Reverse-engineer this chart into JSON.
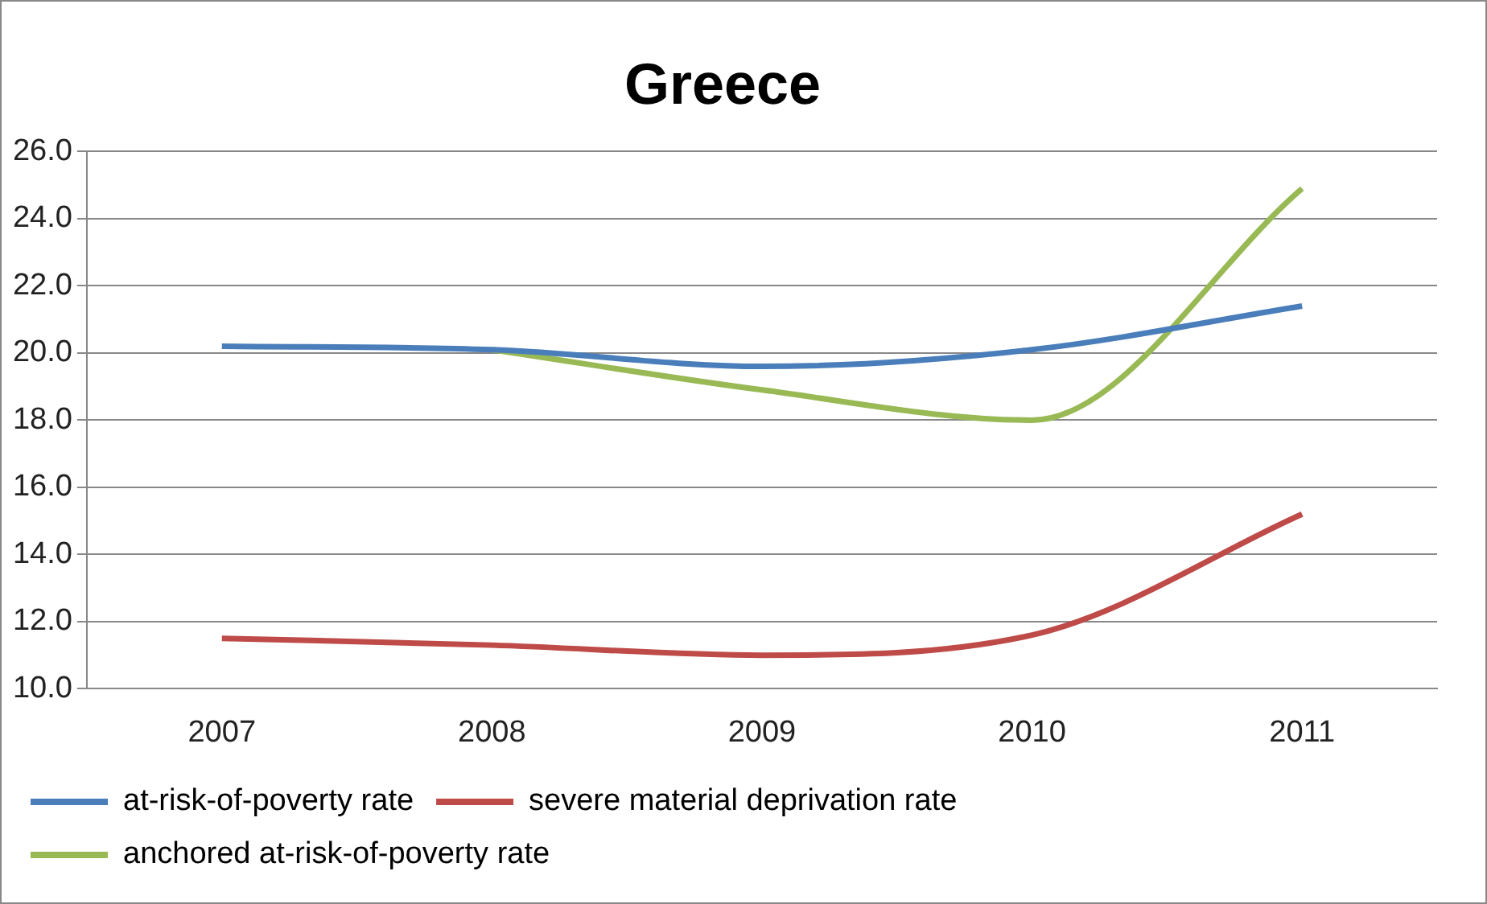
{
  "chart_data": {
    "type": "line",
    "title": "Greece",
    "categories": [
      "2007",
      "2008",
      "2009",
      "2010",
      "2011"
    ],
    "series": [
      {
        "name": "at-risk-of-poverty rate",
        "color": "#4a7ebb",
        "values": [
          20.2,
          20.1,
          19.6,
          20.1,
          21.4
        ]
      },
      {
        "name": "severe material deprivation rate",
        "color": "#be4b48",
        "values": [
          11.5,
          11.3,
          11.0,
          11.6,
          15.2
        ]
      },
      {
        "name": "anchored at-risk-of-poverty rate",
        "color": "#98b954",
        "values": [
          null,
          20.1,
          18.9,
          18.0,
          24.9
        ]
      }
    ],
    "ylim": [
      10,
      26
    ],
    "yticks": [
      {
        "value": 10,
        "label": "10.0"
      },
      {
        "value": 12,
        "label": "12.0"
      },
      {
        "value": 14,
        "label": "14.0"
      },
      {
        "value": 16,
        "label": "16.0"
      },
      {
        "value": 18,
        "label": "18.0"
      },
      {
        "value": 20,
        "label": "20.0"
      },
      {
        "value": 22,
        "label": "22.0"
      },
      {
        "value": 24,
        "label": "24.0"
      },
      {
        "value": 26,
        "label": "26.0"
      }
    ],
    "grid": "y",
    "legend": "bottom",
    "marker": "none",
    "line_style": "solid"
  }
}
